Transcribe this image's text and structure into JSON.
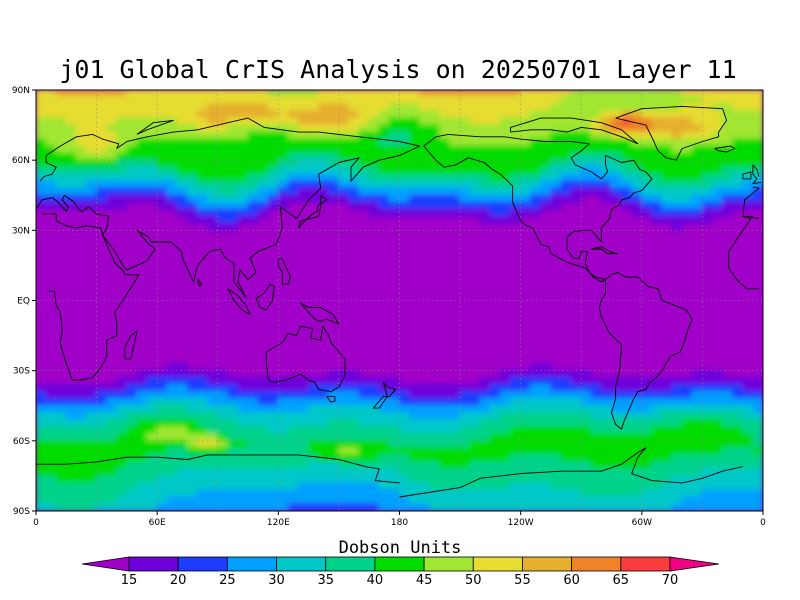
{
  "title": "j01 Global CrIS Analysis on 20250701 Layer 11",
  "colorbar": {
    "units_label": "Dobson Units",
    "levels": [
      "15",
      "20",
      "25",
      "30",
      "35",
      "40",
      "45",
      "50",
      "55",
      "60",
      "65",
      "70"
    ],
    "colors": [
      "#a000c8",
      "#6e00dc",
      "#1e3cff",
      "#00a0ff",
      "#00c8c8",
      "#00d28c",
      "#00dc00",
      "#a0e632",
      "#e6dc32",
      "#e6af2d",
      "#f08228",
      "#fa3c3c",
      "#f00082"
    ]
  },
  "axes": {
    "lat_labels": [
      "90N",
      "60N",
      "30N",
      "EQ",
      "30S",
      "60S",
      "90S"
    ],
    "lon_labels": [
      "0",
      "60E",
      "120E",
      "180",
      "120W",
      "60W",
      "0"
    ]
  },
  "chart_data": {
    "type": "heatmap",
    "title": "j01 Global CrIS Analysis on 20250701 Layer 11",
    "projection": "equirectangular",
    "lon_range": [
      0,
      360
    ],
    "lat_range": [
      -90,
      90
    ],
    "grid": true,
    "colorbar_label": "Dobson Units",
    "colorbar_levels": [
      15,
      20,
      25,
      30,
      35,
      40,
      45,
      50,
      55,
      60,
      65,
      70
    ],
    "legend_position": "bottom",
    "field_summary": {
      "tropics_30S_to_35N": "<15",
      "midlatitude_transition": "20-35",
      "north_polar_max": 70,
      "south_high_latitude_max": 55
    }
  }
}
